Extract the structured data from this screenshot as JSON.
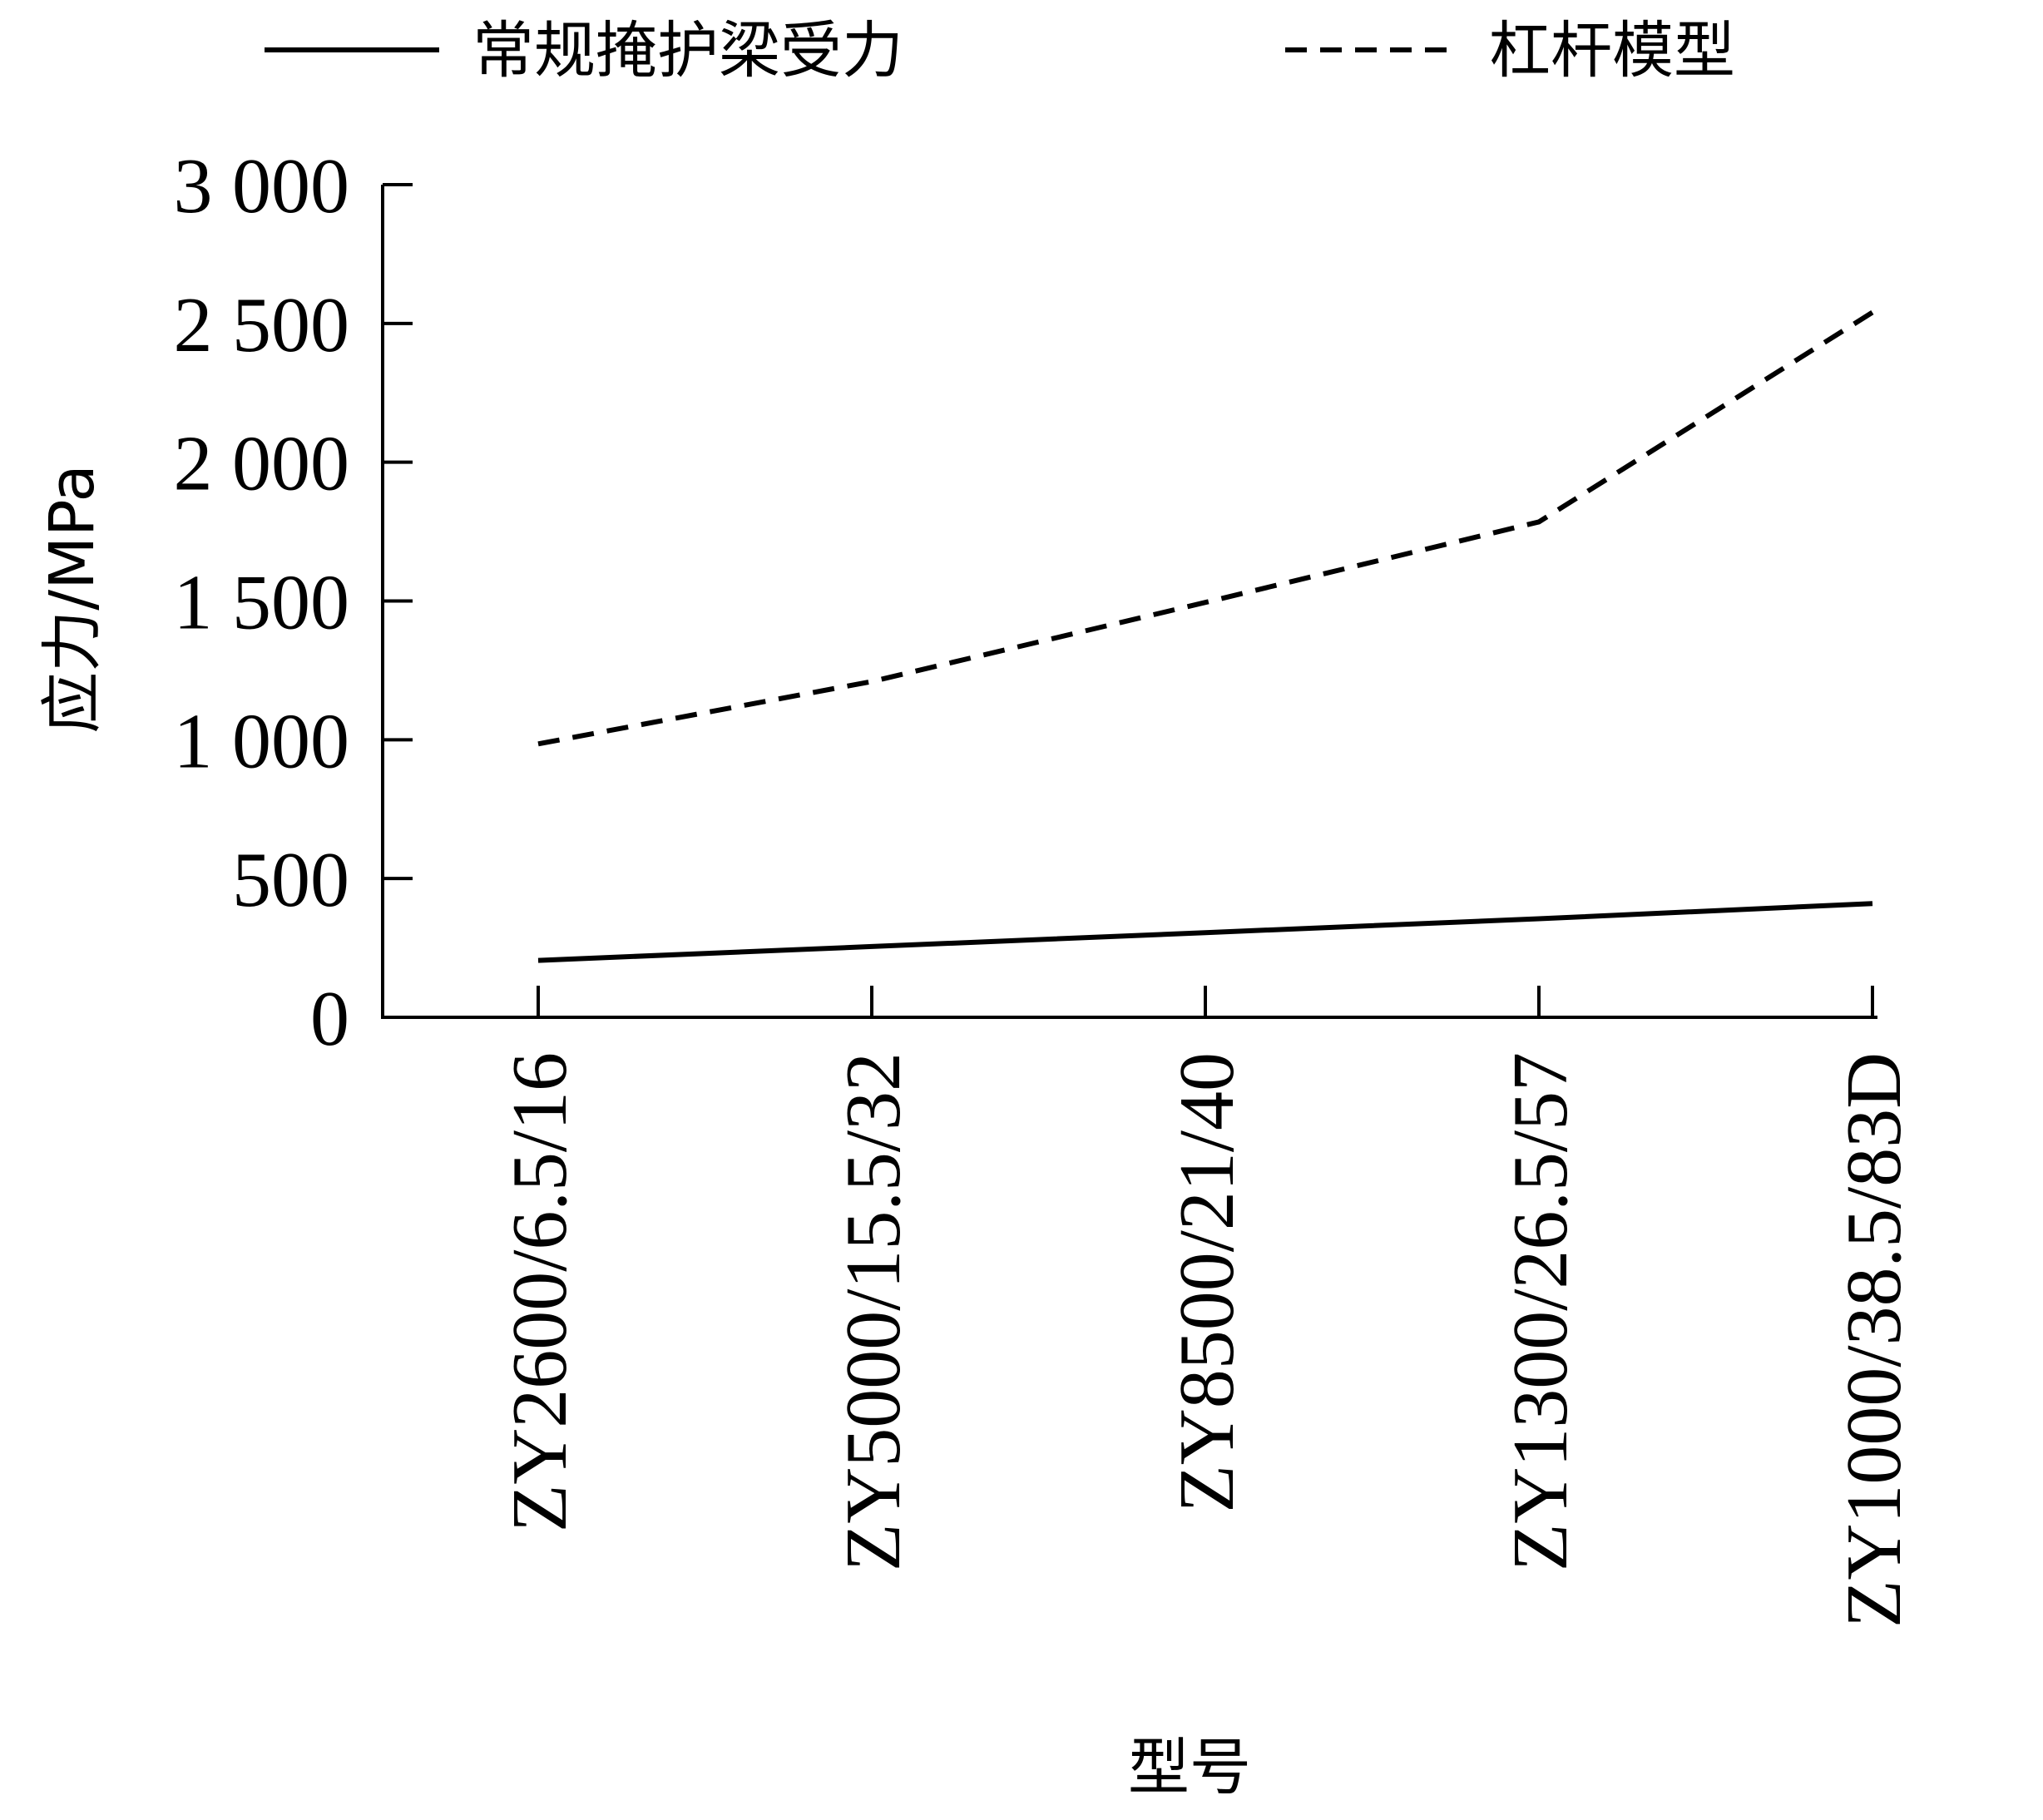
{
  "chart_data": {
    "type": "line",
    "title": "",
    "xlabel": "型号",
    "ylabel": "应力/MPa",
    "categories": [
      "ZY2600/6.5/16",
      "ZY5000/15.5/32",
      "ZY8500/21/40",
      "ZY1300/26.5/57",
      "ZY1000/38.5/83D"
    ],
    "ylim": [
      0,
      3000
    ],
    "yticks": [
      0,
      500,
      1000,
      1500,
      2000,
      2500,
      3000
    ],
    "ytick_labels": [
      "0",
      "500",
      "1 000",
      "1 500",
      "2 000",
      "2 500",
      "3 000"
    ],
    "grid": false,
    "legend_position": "top",
    "series": [
      {
        "name": "常规掩护梁受力",
        "style": "solid",
        "color": "#000000",
        "values": [
          205,
          255,
          305,
          355,
          410
        ]
      },
      {
        "name": "杠杆模型",
        "style": "dashed",
        "color": "#000000",
        "values": [
          985,
          1210,
          1495,
          1785,
          2540
        ]
      }
    ]
  }
}
